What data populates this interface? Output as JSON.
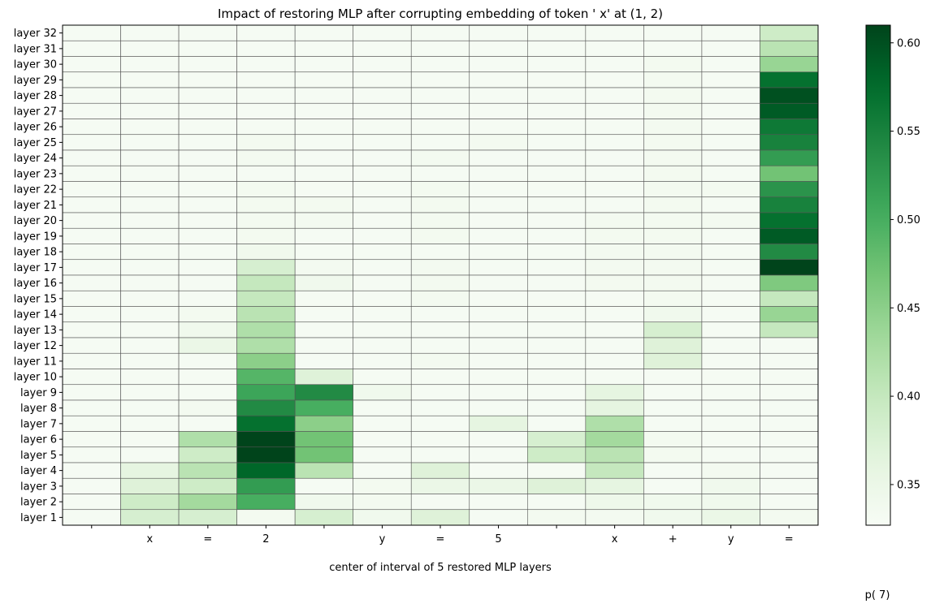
{
  "chart_data": {
    "type": "heatmap",
    "title": "Impact of restoring MLP after corrupting embedding of token ' x' at (1, 2)",
    "xlabel": "center of interval of 5 restored MLP layers",
    "colorbar_label": "p( 7)",
    "colormap": "Greens",
    "vmin": 0.327,
    "vmax": 0.61,
    "colorbar_ticks": [
      "0.35",
      "0.40",
      "0.45",
      "0.50",
      "0.55",
      "0.60"
    ],
    "colorbar_tick_values": [
      0.35,
      0.4,
      0.45,
      0.5,
      0.55,
      0.6
    ],
    "x_tokens": [
      "",
      "x",
      "=",
      "2",
      "",
      "y",
      "=",
      "5",
      "",
      "x",
      "+",
      "y",
      "="
    ],
    "y_labels": [
      "layer 32",
      "layer 31",
      "layer 30",
      "layer 29",
      "layer 28",
      "layer 27",
      "layer 26",
      "layer 25",
      "layer 24",
      "layer 23",
      "layer 22",
      "layer 21",
      "layer 20",
      "layer 19",
      "layer 18",
      "layer 17",
      "layer 16",
      "layer 15",
      "layer 14",
      "layer 13",
      "layer 12",
      "layer 11",
      "layer 10",
      "layer 9",
      "layer 8",
      "layer 7",
      "layer 6",
      "layer 5",
      "layer 4",
      "layer 3",
      "layer 2",
      "layer 1"
    ],
    "values": [
      [
        0.33,
        0.33,
        0.33,
        0.33,
        0.33,
        0.33,
        0.33,
        0.33,
        0.33,
        0.33,
        0.33,
        0.33,
        0.39
      ],
      [
        0.33,
        0.33,
        0.33,
        0.33,
        0.33,
        0.33,
        0.33,
        0.33,
        0.33,
        0.33,
        0.33,
        0.33,
        0.41
      ],
      [
        0.33,
        0.33,
        0.33,
        0.33,
        0.33,
        0.33,
        0.33,
        0.33,
        0.33,
        0.33,
        0.335,
        0.33,
        0.44
      ],
      [
        0.33,
        0.33,
        0.33,
        0.33,
        0.33,
        0.33,
        0.33,
        0.33,
        0.33,
        0.33,
        0.335,
        0.33,
        0.57
      ],
      [
        0.33,
        0.33,
        0.33,
        0.33,
        0.33,
        0.33,
        0.33,
        0.33,
        0.33,
        0.33,
        0.335,
        0.33,
        0.6
      ],
      [
        0.33,
        0.33,
        0.33,
        0.33,
        0.33,
        0.33,
        0.33,
        0.33,
        0.33,
        0.33,
        0.335,
        0.33,
        0.59
      ],
      [
        0.33,
        0.33,
        0.33,
        0.33,
        0.33,
        0.33,
        0.33,
        0.33,
        0.33,
        0.33,
        0.335,
        0.33,
        0.56
      ],
      [
        0.33,
        0.33,
        0.33,
        0.335,
        0.33,
        0.33,
        0.33,
        0.335,
        0.33,
        0.33,
        0.335,
        0.33,
        0.55
      ],
      [
        0.33,
        0.33,
        0.33,
        0.335,
        0.33,
        0.33,
        0.335,
        0.33,
        0.33,
        0.33,
        0.335,
        0.33,
        0.52
      ],
      [
        0.33,
        0.33,
        0.33,
        0.33,
        0.33,
        0.33,
        0.33,
        0.33,
        0.33,
        0.33,
        0.335,
        0.33,
        0.47
      ],
      [
        0.33,
        0.33,
        0.33,
        0.335,
        0.33,
        0.33,
        0.335,
        0.33,
        0.33,
        0.33,
        0.335,
        0.335,
        0.53
      ],
      [
        0.33,
        0.33,
        0.33,
        0.335,
        0.335,
        0.33,
        0.335,
        0.33,
        0.33,
        0.33,
        0.335,
        0.33,
        0.55
      ],
      [
        0.33,
        0.33,
        0.33,
        0.335,
        0.335,
        0.33,
        0.335,
        0.33,
        0.33,
        0.335,
        0.335,
        0.335,
        0.57
      ],
      [
        0.33,
        0.33,
        0.33,
        0.335,
        0.33,
        0.33,
        0.335,
        0.33,
        0.33,
        0.335,
        0.335,
        0.33,
        0.59
      ],
      [
        0.33,
        0.33,
        0.33,
        0.34,
        0.33,
        0.33,
        0.33,
        0.33,
        0.33,
        0.335,
        0.335,
        0.33,
        0.54
      ],
      [
        0.33,
        0.33,
        0.33,
        0.38,
        0.335,
        0.33,
        0.335,
        0.33,
        0.33,
        0.335,
        0.335,
        0.33,
        0.61
      ],
      [
        0.33,
        0.33,
        0.33,
        0.4,
        0.34,
        0.33,
        0.335,
        0.33,
        0.33,
        0.335,
        0.335,
        0.33,
        0.46
      ],
      [
        0.33,
        0.33,
        0.33,
        0.4,
        0.33,
        0.33,
        0.335,
        0.33,
        0.33,
        0.33,
        0.335,
        0.33,
        0.4
      ],
      [
        0.33,
        0.33,
        0.335,
        0.41,
        0.33,
        0.33,
        0.33,
        0.33,
        0.33,
        0.33,
        0.34,
        0.33,
        0.44
      ],
      [
        0.33,
        0.33,
        0.34,
        0.42,
        0.33,
        0.33,
        0.33,
        0.33,
        0.33,
        0.33,
        0.38,
        0.33,
        0.4
      ],
      [
        0.33,
        0.33,
        0.35,
        0.42,
        0.33,
        0.33,
        0.33,
        0.33,
        0.33,
        0.33,
        0.37,
        0.33,
        0.33
      ],
      [
        0.33,
        0.33,
        0.33,
        0.45,
        0.33,
        0.33,
        0.335,
        0.33,
        0.33,
        0.33,
        0.37,
        0.33,
        0.33
      ],
      [
        0.33,
        0.33,
        0.33,
        0.49,
        0.37,
        0.33,
        0.33,
        0.33,
        0.33,
        0.33,
        0.33,
        0.33,
        0.33
      ],
      [
        0.33,
        0.33,
        0.33,
        0.51,
        0.54,
        0.34,
        0.33,
        0.33,
        0.33,
        0.36,
        0.33,
        0.33,
        0.33
      ],
      [
        0.33,
        0.33,
        0.335,
        0.54,
        0.5,
        0.33,
        0.33,
        0.33,
        0.33,
        0.36,
        0.33,
        0.33,
        0.33
      ],
      [
        0.33,
        0.33,
        0.33,
        0.57,
        0.45,
        0.33,
        0.33,
        0.36,
        0.33,
        0.42,
        0.33,
        0.33,
        0.33
      ],
      [
        0.33,
        0.33,
        0.42,
        0.61,
        0.47,
        0.33,
        0.33,
        0.33,
        0.38,
        0.43,
        0.335,
        0.33,
        0.33
      ],
      [
        0.33,
        0.33,
        0.39,
        0.61,
        0.47,
        0.33,
        0.33,
        0.33,
        0.39,
        0.41,
        0.335,
        0.33,
        0.33
      ],
      [
        0.33,
        0.36,
        0.41,
        0.58,
        0.41,
        0.33,
        0.37,
        0.33,
        0.33,
        0.4,
        0.33,
        0.335,
        0.33
      ],
      [
        0.33,
        0.37,
        0.39,
        0.52,
        0.33,
        0.335,
        0.35,
        0.35,
        0.37,
        0.36,
        0.33,
        0.34,
        0.33
      ],
      [
        0.33,
        0.39,
        0.43,
        0.5,
        0.34,
        0.335,
        0.33,
        0.33,
        0.33,
        0.345,
        0.34,
        0.34,
        0.33
      ],
      [
        0.33,
        0.38,
        0.38,
        0.335,
        0.38,
        0.34,
        0.37,
        0.33,
        0.335,
        0.335,
        0.34,
        0.35,
        0.335
      ]
    ]
  }
}
